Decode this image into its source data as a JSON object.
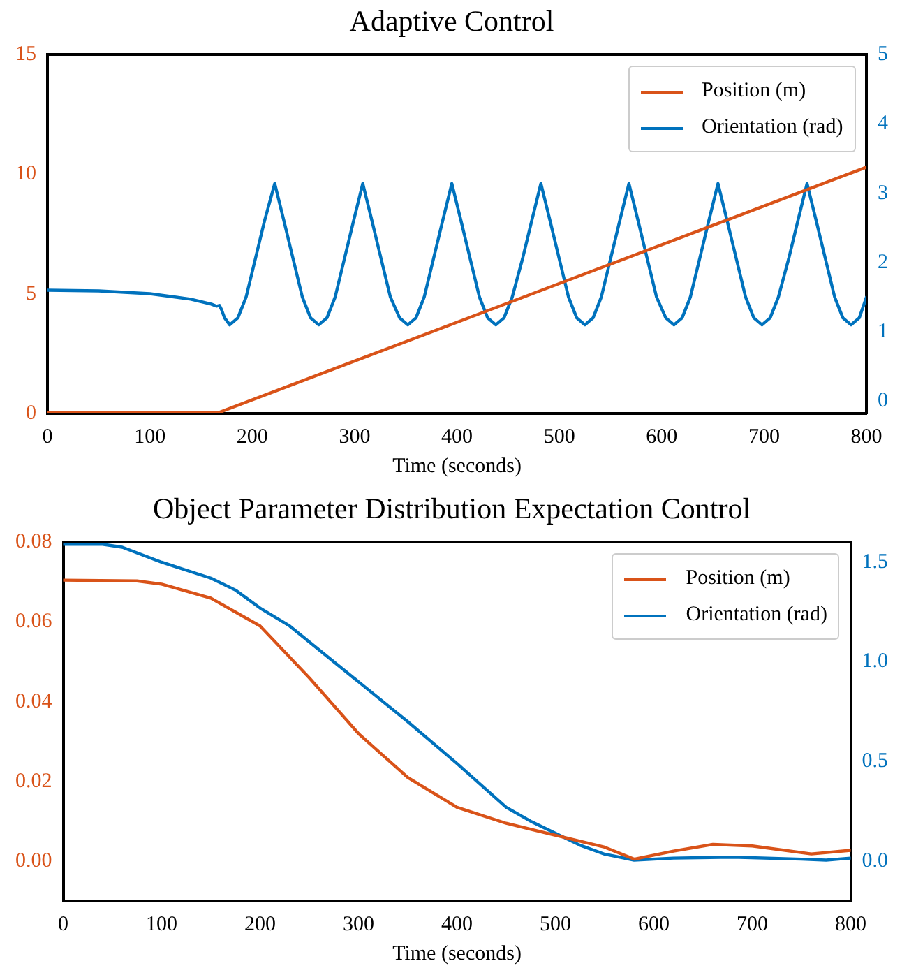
{
  "chart_data": [
    {
      "type": "line",
      "title": "Adaptive Control",
      "xlabel": "Time (seconds)",
      "xlim": [
        0,
        800
      ],
      "xticks": [
        0,
        100,
        200,
        300,
        400,
        500,
        600,
        700,
        800
      ],
      "ylim": [
        0,
        15
      ],
      "yticks": [
        0,
        5,
        10,
        15
      ],
      "y2lim": [
        -0.18,
        5
      ],
      "y2ticks": [
        0,
        1,
        2,
        3,
        4,
        5
      ],
      "grid": false,
      "legend": "top right",
      "marker": "none",
      "line_style": "solid",
      "series": [
        {
          "name": "Position (m)",
          "color": "#d95319",
          "x": [
            0,
            168,
            800
          ],
          "values": [
            0.05,
            0.05,
            10.3
          ]
        },
        {
          "name": "Orientation (rad)",
          "color": "#0072bd",
          "axis": "y2",
          "x": [
            0,
            50,
            100,
            140,
            160,
            165,
            168,
            170,
            173,
            178,
            186,
            194,
            203,
            212,
            222,
            231,
            240,
            249,
            257,
            265,
            273,
            281,
            290,
            299,
            308,
            317,
            326,
            335,
            344,
            352,
            360,
            368,
            377,
            386,
            395,
            404,
            413,
            422,
            430,
            438,
            446,
            454,
            464,
            473,
            482,
            491,
            500,
            509,
            517,
            525,
            533,
            541,
            550,
            559,
            568,
            577,
            586,
            595,
            604,
            612,
            620,
            628,
            637,
            646,
            655,
            664,
            673,
            682,
            690,
            698,
            706,
            714,
            724,
            733,
            742,
            751,
            760,
            769,
            777,
            785,
            793,
            800
          ],
          "values": [
            1.6,
            1.59,
            1.55,
            1.47,
            1.4,
            1.37,
            1.38,
            1.32,
            1.2,
            1.1,
            1.2,
            1.5,
            2.05,
            2.6,
            3.14,
            2.6,
            2.05,
            1.5,
            1.2,
            1.1,
            1.2,
            1.5,
            2.05,
            2.6,
            3.14,
            2.6,
            2.05,
            1.5,
            1.2,
            1.1,
            1.2,
            1.5,
            2.05,
            2.6,
            3.14,
            2.6,
            2.05,
            1.5,
            1.2,
            1.1,
            1.2,
            1.5,
            2.05,
            2.6,
            3.14,
            2.6,
            2.05,
            1.5,
            1.2,
            1.1,
            1.2,
            1.5,
            2.05,
            2.6,
            3.14,
            2.6,
            2.05,
            1.5,
            1.2,
            1.1,
            1.2,
            1.5,
            2.05,
            2.6,
            3.14,
            2.6,
            2.05,
            1.5,
            1.2,
            1.1,
            1.2,
            1.5,
            2.05,
            2.6,
            3.14,
            2.6,
            2.05,
            1.5,
            1.2,
            1.1,
            1.2,
            1.5
          ]
        }
      ]
    },
    {
      "type": "line",
      "title": "Object Parameter Distribution Expectation Control",
      "xlabel": "Time (seconds)",
      "xlim": [
        0,
        800
      ],
      "xticks": [
        0,
        100,
        200,
        300,
        400,
        500,
        600,
        700,
        800
      ],
      "ylim": [
        -0.01,
        0.08
      ],
      "yticks": [
        {
          "value": 0,
          "label": "0.00"
        },
        {
          "value": 0.02,
          "label": "0.02"
        },
        {
          "value": 0.04,
          "label": "0.04"
        },
        {
          "value": 0.06,
          "label": "0.06"
        },
        {
          "value": 0.08,
          "label": "0.08"
        }
      ],
      "y2lim": [
        -0.2,
        1.6
      ],
      "y2ticks": [
        {
          "value": 0,
          "label": "0.0"
        },
        {
          "value": 0.5,
          "label": "0.5"
        },
        {
          "value": 1,
          "label": "1.0"
        },
        {
          "value": 1.5,
          "label": "1.5"
        }
      ],
      "grid": false,
      "legend": "top right",
      "marker": "none",
      "line_style": "solid",
      "series": [
        {
          "name": "Position (m)",
          "color": "#d95319",
          "x": [
            0,
            75,
            100,
            150,
            200,
            250,
            300,
            350,
            400,
            450,
            500,
            550,
            580,
            620,
            660,
            700,
            760,
            800
          ],
          "values": [
            0.0705,
            0.0703,
            0.0695,
            0.066,
            0.059,
            0.046,
            0.032,
            0.021,
            0.0135,
            0.0095,
            0.0065,
            0.0035,
            0.0005,
            0.0025,
            0.0042,
            0.0038,
            0.0018,
            0.0027
          ]
        },
        {
          "name": "Orientation (rad)",
          "color": "#0072bd",
          "axis": "y2",
          "x": [
            0,
            40,
            60,
            100,
            150,
            175,
            200,
            230,
            260,
            300,
            350,
            400,
            450,
            475,
            500,
            525,
            550,
            580,
            620,
            680,
            750,
            775,
            800
          ],
          "values": [
            1.59,
            1.59,
            1.575,
            1.5,
            1.42,
            1.36,
            1.27,
            1.18,
            1.06,
            0.9,
            0.7,
            0.49,
            0.27,
            0.2,
            0.14,
            0.08,
            0.035,
            0.005,
            0.015,
            0.02,
            0.01,
            0.005,
            0.015
          ]
        }
      ]
    }
  ]
}
